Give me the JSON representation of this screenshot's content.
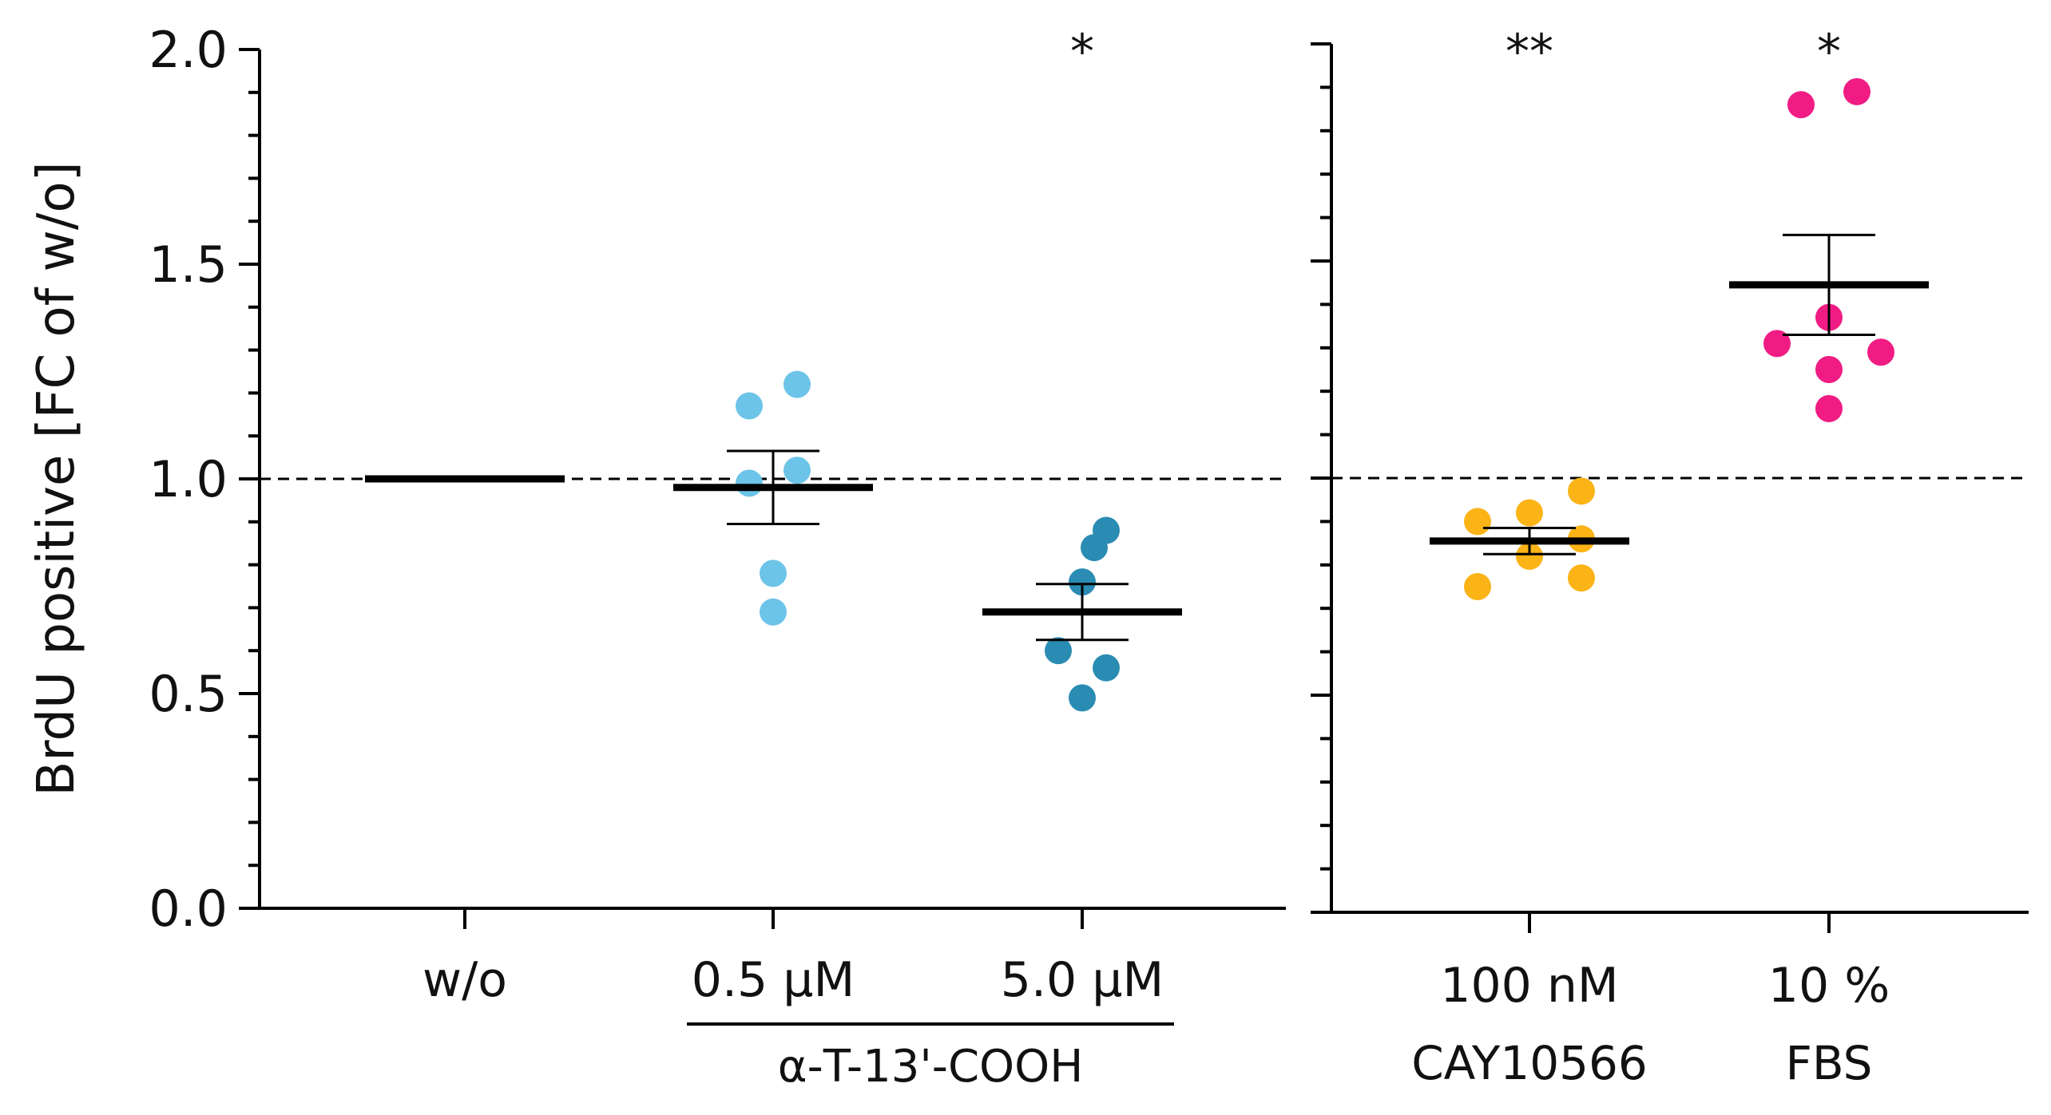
{
  "chart_data": {
    "type": "scatter",
    "ylabel": "BrdU positive [FC of w/o]",
    "ylim": [
      0.0,
      2.0
    ],
    "yticks": [
      "0.0",
      "0.5",
      "1.0",
      "1.5",
      "2.0"
    ],
    "reference_line": 1.0,
    "panels": [
      {
        "name": "left",
        "groups": [
          {
            "label": "w/o",
            "color": "#000000",
            "points": [],
            "mean": 1.0,
            "sem": 0,
            "sig": ""
          },
          {
            "label": "0.5 µM",
            "color": "#6cc4e8",
            "points": [
              1.17,
              1.22,
              0.99,
              1.02,
              0.78,
              0.69
            ],
            "mean": 0.98,
            "sem": 0.085,
            "sig": ""
          },
          {
            "label": "5.0 µM",
            "color": "#2b8cb3",
            "points": [
              0.84,
              0.88,
              0.76,
              0.6,
              0.56,
              0.49
            ],
            "mean": 0.69,
            "sem": 0.065,
            "sig": "*"
          }
        ],
        "bracket_label": "α-T-13'-COOH"
      },
      {
        "name": "right",
        "groups": [
          {
            "label": "100 nM",
            "sublabel": "CAY10566",
            "color": "#fbb316",
            "points": [
              0.9,
              0.92,
              0.97,
              0.75,
              0.82,
              0.86,
              0.77
            ],
            "mean": 0.855,
            "sem": 0.03,
            "sig": "**"
          },
          {
            "label": "10 %",
            "sublabel": "FBS",
            "color": "#f01c84",
            "points": [
              1.86,
              1.89,
              1.37,
              1.31,
              1.25,
              1.29,
              1.16
            ],
            "mean": 1.445,
            "sem": 0.115,
            "sig": "*"
          }
        ]
      }
    ]
  }
}
